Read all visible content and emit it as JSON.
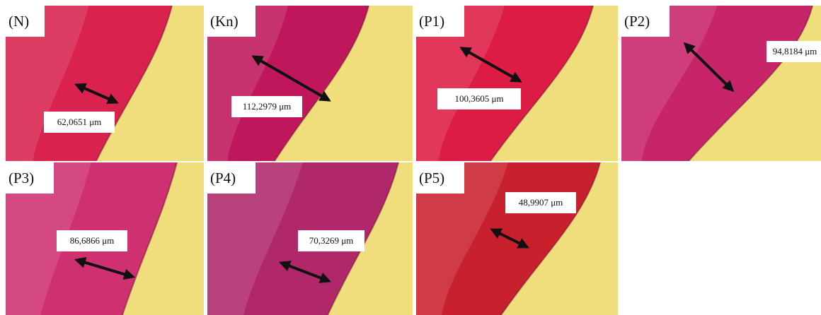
{
  "panels": [
    {
      "label": "(N)",
      "measurement": "62,0651 μm"
    },
    {
      "label": "(Kn)",
      "measurement": "112,2979 μm"
    },
    {
      "label": "(P1)",
      "measurement": "100,3605 μm"
    },
    {
      "label": "(P2)",
      "measurement": "94,8184 μm"
    },
    {
      "label": "(P3)",
      "measurement": "86,6866 μm"
    },
    {
      "label": "(P4)",
      "measurement": "70,3269 μm"
    },
    {
      "label": "(P5)",
      "measurement": "48,9907 μm"
    }
  ]
}
